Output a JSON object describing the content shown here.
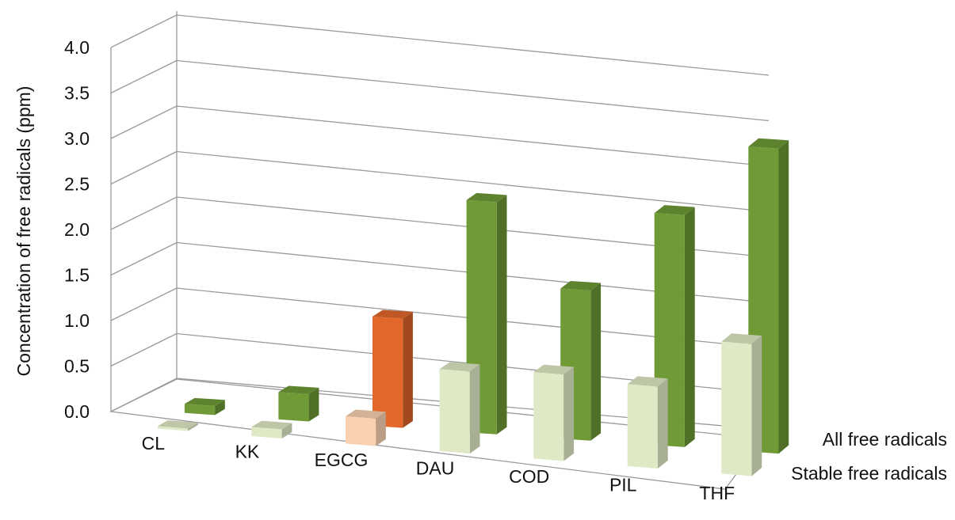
{
  "chart_data": {
    "type": "bar",
    "subtype": "3d-column",
    "categories": [
      "CL",
      "KK",
      "EGCG",
      "DAU",
      "COD",
      "PIL",
      "THF"
    ],
    "series": [
      {
        "name": "All free radicals",
        "values": [
          0.1,
          0.3,
          1.2,
          2.55,
          1.65,
          2.55,
          3.35
        ],
        "color": "#6f9a36",
        "highlight": {
          "index": 2,
          "color": "#e1672a"
        }
      },
      {
        "name": "Stable free radicals",
        "values": [
          0.0,
          0.1,
          0.3,
          0.9,
          0.95,
          0.9,
          1.45
        ],
        "color": "#dfe9c6",
        "highlight": {
          "index": 2,
          "color": "#f9d1b1"
        }
      }
    ],
    "yticks": [
      "0.0",
      "0.5",
      "1.0",
      "1.5",
      "2.0",
      "2.5",
      "3.0",
      "3.5",
      "4.0"
    ],
    "ylim": [
      0,
      4.0
    ],
    "ylabel": "Concentration of free radicals (ppm)",
    "xlabel": "",
    "title": "",
    "grid": true,
    "legend": "depth-axis series labels at right"
  }
}
